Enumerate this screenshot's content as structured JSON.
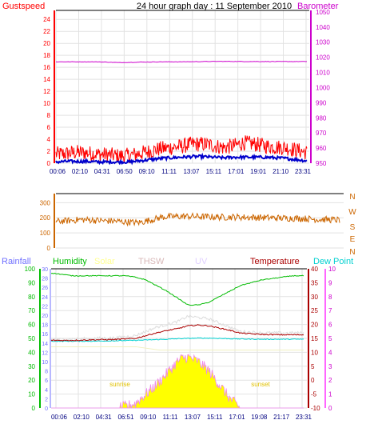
{
  "header": {
    "left_label": "Gustspeed",
    "title": "24 hour graph day : 11 September 2010",
    "right_label": "Barometer"
  },
  "colors": {
    "gust": "#ff0000",
    "wind": "#0000cc",
    "barometer": "#cc00cc",
    "direction": "#cc6600",
    "rainfall": "#7070ff",
    "humidity": "#00bb00",
    "solar": "#ffff00",
    "thsw": "#d8b8b8",
    "uv": "#e0d0ff",
    "temperature": "#aa0000",
    "dewpoint": "#00d0d0",
    "thsw_line": "#dddddd",
    "heat_line": "#f0f0c0"
  },
  "chart_data": [
    {
      "type": "line",
      "id": "speed",
      "x_ticks": [
        "00:06",
        "02:10",
        "04:31",
        "06:50",
        "09:10",
        "11:11",
        "13:07",
        "15:11",
        "17:01",
        "19:01",
        "21:10",
        "23:31"
      ],
      "left_axis": {
        "ticks": [
          0,
          2,
          4,
          6,
          8,
          10,
          12,
          14,
          16,
          18,
          20,
          22,
          24
        ],
        "ylim": [
          0,
          25.5
        ]
      },
      "right_axis": {
        "ticks": [
          950,
          960,
          970,
          980,
          990,
          1000,
          1010,
          1020,
          1030,
          1040,
          1050
        ],
        "ylim": [
          950,
          1051
        ]
      },
      "series": [
        {
          "key": "gust",
          "x": [
            0,
            1,
            2,
            3,
            4,
            5,
            6,
            7,
            8,
            9,
            10,
            11,
            12,
            13,
            14,
            15,
            16,
            17,
            18,
            19,
            20,
            21,
            22,
            23,
            24
          ],
          "values": [
            1.5,
            1.6,
            1.8,
            1.7,
            1.5,
            1.4,
            1.2,
            1.3,
            1.6,
            2.0,
            2.4,
            2.6,
            2.8,
            3.2,
            3.2,
            3.0,
            2.6,
            2.9,
            3.4,
            3.2,
            2.9,
            2.7,
            2.6,
            2.2,
            1.8
          ],
          "noise": 1.3
        },
        {
          "key": "wind",
          "x": [
            0,
            1,
            2,
            3,
            4,
            5,
            6,
            7,
            8,
            9,
            10,
            11,
            12,
            13,
            14,
            15,
            16,
            17,
            18,
            19,
            20,
            21,
            22,
            23,
            24
          ],
          "values": [
            0.2,
            0.3,
            0.3,
            0.3,
            0.2,
            0.2,
            0.2,
            0.2,
            0.4,
            0.6,
            0.8,
            0.9,
            1.0,
            1.1,
            1.1,
            1.0,
            0.9,
            1.0,
            1.0,
            1.0,
            1.0,
            0.9,
            0.8,
            0.6,
            0.4
          ],
          "noise": 0.25
        },
        {
          "key": "barometer",
          "axis": "right",
          "x": [
            0,
            2,
            4,
            6,
            8,
            10,
            12,
            14,
            16,
            18,
            20,
            22,
            24
          ],
          "values": [
            1017,
            1017,
            1017,
            1016.5,
            1016.8,
            1017,
            1017,
            1017.2,
            1017.3,
            1017.2,
            1017.2,
            1017.2,
            1017.2
          ],
          "noise": 0.15
        }
      ]
    },
    {
      "type": "line",
      "id": "direction",
      "right_labels": [
        "N",
        "W",
        "S",
        "E",
        "N"
      ],
      "left_axis": {
        "ticks": [
          0,
          100,
          200,
          300
        ],
        "ylim": [
          0,
          360
        ]
      },
      "series": [
        {
          "key": "direction",
          "x": [
            0,
            1,
            2,
            3,
            4,
            5,
            6,
            7,
            8,
            9,
            10,
            11,
            12,
            13,
            14,
            15,
            16,
            17,
            18,
            19,
            20,
            21,
            22,
            23,
            24
          ],
          "values": [
            175,
            180,
            188,
            185,
            180,
            178,
            172,
            168,
            185,
            205,
            208,
            210,
            208,
            206,
            204,
            205,
            203,
            202,
            200,
            198,
            197,
            195,
            190,
            188,
            185
          ],
          "noise": 22
        }
      ]
    },
    {
      "type": "line",
      "id": "weather",
      "legend": [
        "Rainfall",
        "Humidity",
        "Solar",
        "THSW",
        "UV",
        "Temperature",
        "Dew Point"
      ],
      "x_ticks": [
        "00:06",
        "02:10",
        "04:31",
        "06:51",
        "09:10",
        "11:11",
        "13:07",
        "15:11",
        "17:01",
        "19:08",
        "21:17",
        "23:31"
      ],
      "humidity_axis": {
        "ticks": [
          0,
          5,
          10,
          15,
          20,
          25,
          30,
          35,
          40,
          45,
          50,
          55,
          60,
          65,
          70,
          75,
          80,
          85,
          90,
          95,
          100
        ],
        "ylim": [
          0,
          100
        ]
      },
      "rain_axis": {
        "ticks": [
          0,
          2,
          4,
          6,
          8,
          10,
          12,
          14,
          16,
          18,
          20,
          22,
          24,
          26,
          28,
          30
        ],
        "ylim": [
          0,
          30
        ]
      },
      "temp_axis": {
        "ticks": [
          -10,
          -5,
          0,
          5,
          10,
          15,
          20,
          25,
          30,
          35,
          40
        ],
        "ylim": [
          -10,
          40
        ]
      },
      "uv_axis": {
        "ticks": [
          0,
          1,
          2,
          3,
          4,
          5,
          6,
          7,
          8,
          9,
          10
        ],
        "ylim": [
          0,
          10
        ]
      },
      "annotations": [
        "sunrise",
        "sunset"
      ],
      "series": [
        {
          "key": "humidity",
          "x": [
            0,
            1,
            2,
            3,
            4,
            5,
            6,
            7,
            8,
            9,
            10,
            11,
            12,
            13,
            14,
            15,
            16,
            17,
            18,
            19,
            20,
            21,
            22,
            23,
            24
          ],
          "values": [
            97,
            96,
            95,
            95,
            95,
            95,
            95,
            95,
            94,
            92,
            88,
            84,
            79,
            74,
            74,
            76,
            80,
            84,
            88,
            90,
            92,
            93,
            94,
            95,
            95
          ],
          "noise": 0.3
        },
        {
          "key": "temperature",
          "axis": "temp",
          "x": [
            0,
            2,
            4,
            6,
            8,
            9,
            10,
            11,
            12,
            13,
            14,
            15,
            16,
            17,
            18,
            20,
            22,
            24
          ],
          "values": [
            14.3,
            14.3,
            14.5,
            14.6,
            15,
            16,
            17,
            17.8,
            18.5,
            19.5,
            19.8,
            19.5,
            18.7,
            17.9,
            16.9,
            16.4,
            16.3,
            16.3
          ],
          "noise": 0.2
        },
        {
          "key": "thsw",
          "axis": "temp",
          "x": [
            0,
            2,
            4,
            6,
            8,
            9,
            10,
            11,
            12,
            13,
            14,
            15,
            16,
            17,
            18,
            20,
            22,
            24
          ],
          "values": [
            14.6,
            14.8,
            15,
            15.2,
            16,
            17.5,
            19,
            20,
            21,
            23,
            22.5,
            22,
            20.5,
            19,
            17.5,
            17,
            17,
            17
          ],
          "noise": 0.5
        },
        {
          "key": "dewpoint",
          "axis": "temp",
          "x": [
            0,
            4,
            8,
            11,
            12,
            13,
            14,
            15,
            16,
            17,
            18,
            20,
            22,
            24
          ],
          "values": [
            14,
            14,
            14.3,
            14.7,
            14.9,
            15,
            15.1,
            15.1,
            15,
            14.9,
            14.8,
            14.7,
            14.7,
            14.7
          ],
          "noise": 0.15
        },
        {
          "key": "solar",
          "axis": "rain",
          "x": [
            0,
            6.5,
            7,
            8,
            9,
            10,
            11,
            12,
            12.5,
            13,
            14,
            14.5,
            15,
            15.5,
            16,
            16.5,
            17,
            18,
            24
          ],
          "values": [
            0,
            0,
            0.3,
            1,
            3,
            5,
            7.5,
            10,
            10.8,
            11,
            10,
            9,
            8,
            6.5,
            5,
            3.5,
            2,
            0,
            0
          ],
          "noise": 1.2
        }
      ]
    }
  ]
}
